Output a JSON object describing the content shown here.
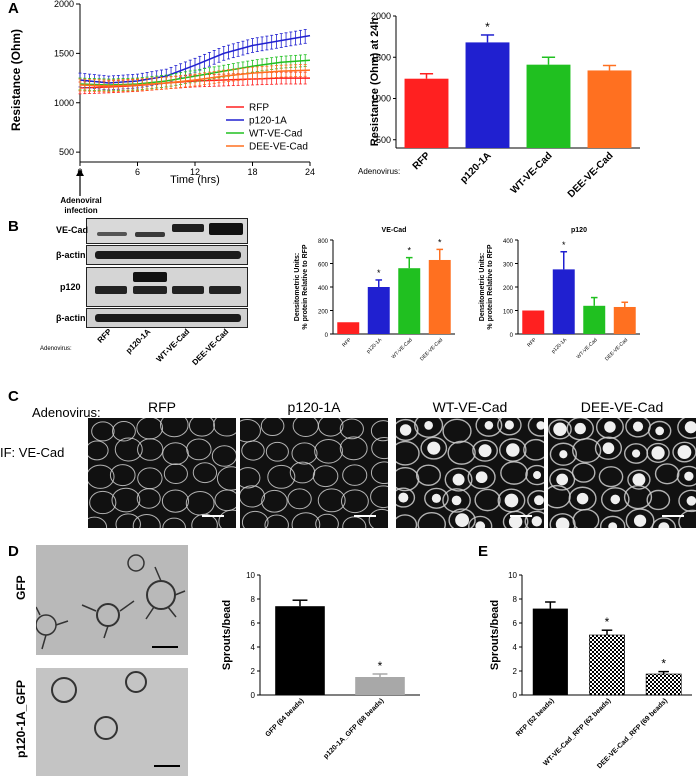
{
  "panels": {
    "a": "A",
    "b": "B",
    "c": "C",
    "d": "D",
    "e": "E"
  },
  "colors": {
    "red": "#ff2020",
    "blue": "#2020d0",
    "green": "#20c020",
    "orange": "#ff7020",
    "gray": "#a8a8a8",
    "black": "#000000"
  },
  "panel_a": {
    "annotation": "Adenoviral infection",
    "chart_data": [
      {
        "type": "line",
        "ylabel": "Resistance (Ohm)",
        "xlabel": "Time (hrs)",
        "ylim": [
          400,
          2000
        ],
        "xlim": [
          0,
          24
        ],
        "yticks": [
          "2000",
          "1500",
          "1000",
          "500"
        ],
        "xticks": [
          "0",
          "6",
          "12",
          "18",
          "24"
        ],
        "legend": "bottom-right",
        "series": [
          {
            "name": "RFP",
            "color": "#ff2020",
            "x": [
              0,
              3,
              6,
              9,
              12,
              15,
              18,
              21,
              24
            ],
            "y": [
              1150,
              1160,
              1175,
              1200,
              1220,
              1230,
              1240,
              1250,
              1250
            ],
            "err": 60
          },
          {
            "name": "p120-1A",
            "color": "#2020d0",
            "x": [
              0,
              3,
              6,
              9,
              12,
              15,
              18,
              21,
              24
            ],
            "y": [
              1230,
              1200,
              1220,
              1270,
              1380,
              1500,
              1580,
              1630,
              1680
            ],
            "err": 70
          },
          {
            "name": "WT-VE-Cad",
            "color": "#20c020",
            "x": [
              0,
              3,
              6,
              9,
              12,
              15,
              18,
              21,
              24
            ],
            "y": [
              1190,
              1180,
              1190,
              1220,
              1270,
              1320,
              1370,
              1410,
              1430
            ],
            "err": 60
          },
          {
            "name": "DEE-VE-Cad",
            "color": "#ff7020",
            "x": [
              0,
              3,
              6,
              9,
              12,
              15,
              18,
              21,
              24
            ],
            "y": [
              1180,
              1170,
              1180,
              1200,
              1230,
              1270,
              1300,
              1320,
              1330
            ],
            "err": 60
          }
        ]
      },
      {
        "type": "bar",
        "ylabel": "Resistance (Ohm) at 24h",
        "xlabel_prefix": "Adenovirus:",
        "ylim": [
          400,
          2000
        ],
        "yticks": [
          "2000",
          "1500",
          "1000",
          "500"
        ],
        "categories": [
          "RFP",
          "p120-1A",
          "WT-VE-Cad",
          "DEE-VE-Cad"
        ],
        "values": [
          1240,
          1680,
          1410,
          1340
        ],
        "errors": [
          60,
          90,
          90,
          60
        ],
        "colors": [
          "#ff2020",
          "#2020d0",
          "#20c020",
          "#ff7020"
        ],
        "sig": [
          "",
          "*",
          "",
          ""
        ]
      }
    ]
  },
  "panel_b": {
    "blot_rows": [
      "VE-Cad",
      "β-actin",
      "p120",
      "β-actin"
    ],
    "lanes": [
      "RFP",
      "p120-1A",
      "WT-VE-Cad",
      "DEE-VE-Cad"
    ],
    "xlabel_prefix": "Adenovirus:",
    "chart_data": [
      {
        "type": "bar",
        "title": "VE-Cad",
        "ylabel": "Densitometric Units:\n% protein Relative to RFP",
        "ylim": [
          0,
          800
        ],
        "yticks": [
          "800",
          "600",
          "400",
          "200",
          "0"
        ],
        "categories": [
          "RFP",
          "p120-1A",
          "WT-VE-Cad",
          "DEE-VE-Cad"
        ],
        "values": [
          100,
          400,
          560,
          630
        ],
        "errors": [
          0,
          60,
          90,
          90
        ],
        "colors": [
          "#ff2020",
          "#2020d0",
          "#20c020",
          "#ff7020"
        ],
        "sig": [
          "",
          "*",
          "*",
          "*"
        ]
      },
      {
        "type": "bar",
        "title": "p120",
        "ylabel": "Densitometric Units:\n% protein Relative to RFP",
        "ylim": [
          0,
          400
        ],
        "yticks": [
          "400",
          "300",
          "200",
          "100",
          "0"
        ],
        "categories": [
          "RFP",
          "p120-1A",
          "WT-VE-Cad",
          "DEE-VE-Cad"
        ],
        "values": [
          100,
          275,
          120,
          115
        ],
        "errors": [
          0,
          75,
          35,
          20
        ],
        "colors": [
          "#ff2020",
          "#2020d0",
          "#20c020",
          "#ff7020"
        ],
        "sig": [
          "",
          "*",
          "",
          ""
        ]
      }
    ]
  },
  "panel_c": {
    "row_label": "Adenovirus:",
    "stain_label": "IF: VE-Cad",
    "titles": [
      "RFP",
      "p120-1A",
      "WT-VE-Cad",
      "DEE-VE-Cad"
    ]
  },
  "panel_d": {
    "image_labels": [
      "GFP",
      "p120-1A_GFP"
    ],
    "chart_data": {
      "type": "bar",
      "ylabel": "Sprouts/bead",
      "ylim": [
        0,
        10
      ],
      "yticks": [
        "10",
        "8",
        "6",
        "4",
        "2",
        "0"
      ],
      "categories": [
        "GFP (64 beads)",
        "p120-1A_GFP (68 beads)"
      ],
      "values": [
        7.4,
        1.5
      ],
      "errors": [
        0.5,
        0.25
      ],
      "colors": [
        "#000000",
        "#a8a8a8"
      ],
      "sig": [
        "",
        "*"
      ]
    }
  },
  "panel_e": {
    "chart_data": {
      "type": "bar",
      "ylabel": "Sprouts/bead",
      "ylim": [
        0,
        10
      ],
      "yticks": [
        "10",
        "8",
        "6",
        "4",
        "2",
        "0"
      ],
      "categories": [
        "RFP (52 beads)",
        "WT-VE-Cad_RFP (62 beads)",
        "DEE-VE-Cad_RFP (69 beads)"
      ],
      "values": [
        7.2,
        5.0,
        1.75
      ],
      "errors": [
        0.55,
        0.4,
        0.2
      ],
      "colors": [
        "#000000",
        "checker",
        "checker"
      ],
      "sig": [
        "",
        "*",
        "*"
      ]
    }
  }
}
